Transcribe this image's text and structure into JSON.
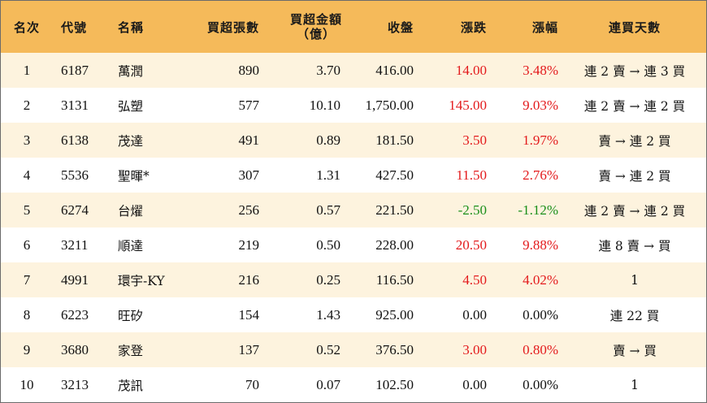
{
  "headers": {
    "rank": "名次",
    "code": "代號",
    "name": "名稱",
    "net_buy_lots": "買超張數",
    "net_buy_amount_line1": "買超金額",
    "net_buy_amount_line2": "（億）",
    "close": "收盤",
    "change": "漲跌",
    "change_pct": "漲幅",
    "streak": "連買天數"
  },
  "colors": {
    "header_bg": "#f5ba5a",
    "stripe_bg": "#fdf3de",
    "up": "#e31a1c",
    "down": "#1a8f1a"
  },
  "rows": [
    {
      "rank": "1",
      "code": "6187",
      "name": "萬潤",
      "lots": "890",
      "amount": "3.70",
      "close": "416.00",
      "change": "14.00",
      "pct": "3.48%",
      "dir": "up",
      "streak": "連 2 賣 → 連 3 買"
    },
    {
      "rank": "2",
      "code": "3131",
      "name": "弘塑",
      "lots": "577",
      "amount": "10.10",
      "close": "1,750.00",
      "change": "145.00",
      "pct": "9.03%",
      "dir": "up",
      "streak": "連 2 賣 → 連 2 買"
    },
    {
      "rank": "3",
      "code": "6138",
      "name": "茂達",
      "lots": "491",
      "amount": "0.89",
      "close": "181.50",
      "change": "3.50",
      "pct": "1.97%",
      "dir": "up",
      "streak": "賣 → 連 2 買"
    },
    {
      "rank": "4",
      "code": "5536",
      "name": "聖暉*",
      "lots": "307",
      "amount": "1.31",
      "close": "427.50",
      "change": "11.50",
      "pct": "2.76%",
      "dir": "up",
      "streak": "賣 → 連 2 買"
    },
    {
      "rank": "5",
      "code": "6274",
      "name": "台燿",
      "lots": "256",
      "amount": "0.57",
      "close": "221.50",
      "change": "-2.50",
      "pct": "-1.12%",
      "dir": "down",
      "streak": "連 2 賣 → 連 2 買"
    },
    {
      "rank": "6",
      "code": "3211",
      "name": "順達",
      "lots": "219",
      "amount": "0.50",
      "close": "228.00",
      "change": "20.50",
      "pct": "9.88%",
      "dir": "up",
      "streak": "連 8 賣 → 買"
    },
    {
      "rank": "7",
      "code": "4991",
      "name": "環宇-KY",
      "lots": "216",
      "amount": "0.25",
      "close": "116.50",
      "change": "4.50",
      "pct": "4.02%",
      "dir": "up",
      "streak": "1"
    },
    {
      "rank": "8",
      "code": "6223",
      "name": "旺矽",
      "lots": "154",
      "amount": "1.43",
      "close": "925.00",
      "change": "0.00",
      "pct": "0.00%",
      "dir": "flat",
      "streak": "連 22 買"
    },
    {
      "rank": "9",
      "code": "3680",
      "name": "家登",
      "lots": "137",
      "amount": "0.52",
      "close": "376.50",
      "change": "3.00",
      "pct": "0.80%",
      "dir": "up",
      "streak": "賣 → 買"
    },
    {
      "rank": "10",
      "code": "3213",
      "name": "茂訊",
      "lots": "70",
      "amount": "0.07",
      "close": "102.50",
      "change": "0.00",
      "pct": "0.00%",
      "dir": "flat",
      "streak": "1"
    }
  ]
}
